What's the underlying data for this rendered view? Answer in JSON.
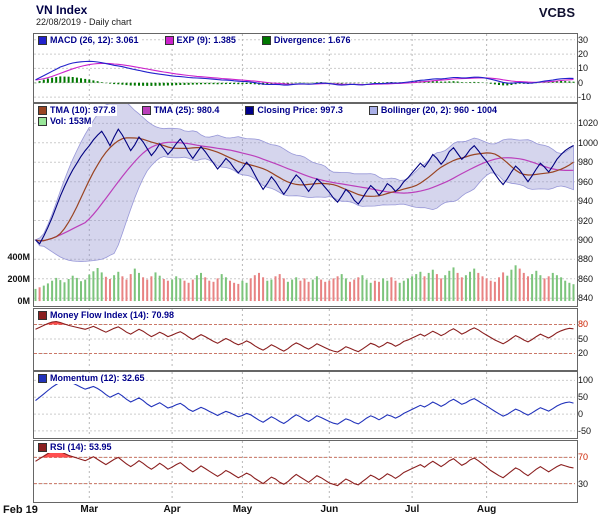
{
  "header": {
    "title": "VN Index",
    "date_line": "22/08/2019 - Daily chart",
    "brand": "VCBS"
  },
  "chart_data": {
    "type": "line",
    "description": "Multi-panel daily stock chart: MACD, price with Bollinger/TMA/volume, Money Flow Index, Momentum, RSI",
    "n_points": 131,
    "month_tick_indices": [
      13,
      33,
      50,
      71,
      91,
      109
    ],
    "x_labels": [
      "Feb 19",
      "Mar",
      "Apr",
      "May",
      "Jun",
      "Jul",
      "Aug"
    ],
    "threshold_label_color": "#cc2200",
    "panels": {
      "macd": {
        "type": "line+histogram",
        "legend": [
          {
            "label": "MACD (26, 12): 3.061",
            "color": "#2222cc"
          },
          {
            "label": "EXP (9): 1.385",
            "color": "#cc22cc"
          },
          {
            "label": "Divergence: 1.676",
            "color": "#007700"
          }
        ],
        "yticks": [
          30,
          20,
          10,
          0,
          -10
        ],
        "ylim": [
          -12,
          34
        ],
        "colors": {
          "macd": "#2222cc",
          "signal": "#cc22cc",
          "histogram": "#007700"
        },
        "series": {
          "macd": [
            2,
            3.5,
            5,
            6.5,
            8,
            9.5,
            11,
            12,
            13,
            13.8,
            14.3,
            14.6,
            14.8,
            15,
            14.8,
            14.5,
            14,
            13.4,
            12.8,
            12.2,
            11.8,
            11.2,
            10.5,
            9.8,
            9.2,
            8.6,
            8,
            7.4,
            6.9,
            6.4,
            6,
            5.6,
            5.2,
            4.8,
            4.5,
            4.3,
            4,
            3.7,
            3.5,
            3.3,
            3.2,
            3,
            2.8,
            2.5,
            2.2,
            2,
            1.9,
            1.7,
            1.4,
            1.1,
            0.9,
            0.8,
            0.5,
            0.1,
            -0.4,
            -0.9,
            -1.2,
            -1.2,
            -1.1,
            -1.3,
            -1.6,
            -1.6,
            -1.3,
            -0.9,
            -0.7,
            -0.8,
            -1,
            -0.8,
            -0.4,
            -0.2,
            -0.3,
            -0.6,
            -1,
            -1.4,
            -1.6,
            -1.4,
            -1.1,
            -1.1,
            -1.4,
            -1.5,
            -1.2,
            -0.8,
            -0.5,
            -0.6,
            -0.6,
            -0.3,
            -0.1,
            -0.2,
            -0.1,
            0.2,
            0.5,
            0.9,
            1.3,
            1.7,
            1.9,
            2.2,
            2.6,
            2.8,
            2.7,
            2.9,
            3.3,
            3.7,
            3.7,
            3.4,
            3.4,
            3.6,
            3.9,
            3.9,
            3.6,
            3.1,
            2.5,
            1.8,
            1,
            0.3,
            -0.2,
            -0.3,
            0,
            0.2,
            0,
            -0.3,
            -0.2,
            0.2,
            0.7,
            1.2,
            1.5,
            1.9,
            2.4,
            2.8,
            3,
            3.1,
            3.061
          ]
        }
      },
      "price": {
        "type": "line+band+volume",
        "legend_row1": [
          {
            "label": "TMA (10): 977.8",
            "color": "#994422"
          },
          {
            "label": "TMA (25): 980.4",
            "color": "#bb3fbb"
          },
          {
            "label": "Closing Price: 997.3",
            "color": "#00008b"
          },
          {
            "label": "Bollinger (20, 2): 960 - 1004",
            "color": "#aab0e8"
          }
        ],
        "legend_row2": [
          {
            "label": "Vol: 153M",
            "color": "#99e699"
          }
        ],
        "yticks": [
          1020,
          1000,
          980,
          960,
          940,
          920,
          900,
          880,
          860,
          840
        ],
        "ylim": [
          834,
          1040
        ],
        "vol_ticks": [
          {
            "label": "400M",
            "value": 400
          },
          {
            "label": "200M",
            "value": 200
          },
          {
            "label": "0M",
            "value": 0
          }
        ],
        "colors": {
          "close": "#000080",
          "tma10": "#994422",
          "tma25": "#bb3fbb",
          "bollinger_fill": "#9090cf",
          "bollinger_edge": "#9898d8",
          "vol_up": "#7cc47c",
          "vol_down": "#e88383"
        },
        "series": {
          "close": [
            900,
            896,
            904,
            913,
            923,
            934,
            945,
            955,
            964,
            972,
            979,
            986,
            992,
            997,
            1003,
            1008,
            1012,
            1005,
            997,
            1006,
            1014,
            1008,
            1000,
            992,
            998,
            1006,
            1001,
            994,
            987,
            992,
            999,
            994,
            988,
            993,
            999,
            1004,
            998,
            990,
            984,
            990,
            996,
            991,
            985,
            979,
            973,
            978,
            984,
            980,
            974,
            969,
            974,
            980,
            975,
            967,
            959,
            952,
            958,
            965,
            960,
            953,
            947,
            953,
            961,
            967,
            963,
            956,
            950,
            956,
            963,
            959,
            954,
            949,
            943,
            939,
            945,
            952,
            948,
            941,
            937,
            943,
            950,
            956,
            952,
            946,
            951,
            958,
            955,
            950,
            954,
            960,
            964,
            969,
            974,
            979,
            975,
            981,
            988,
            984,
            978,
            983,
            991,
            995,
            989,
            983,
            987,
            993,
            997,
            992,
            986,
            981,
            975,
            968,
            962,
            957,
            963,
            970,
            976,
            972,
            966,
            960,
            966,
            973,
            979,
            975,
            970,
            976,
            983,
            988,
            992,
            995,
            997.3
          ],
          "volume": [
            110,
            125,
            140,
            160,
            185,
            210,
            190,
            170,
            200,
            230,
            210,
            180,
            195,
            240,
            270,
            300,
            260,
            220,
            200,
            235,
            265,
            225,
            195,
            245,
            295,
            255,
            215,
            195,
            225,
            260,
            230,
            200,
            185,
            195,
            225,
            205,
            185,
            165,
            195,
            235,
            255,
            215,
            185,
            175,
            205,
            245,
            215,
            185,
            165,
            155,
            185,
            165,
            205,
            235,
            255,
            215,
            185,
            195,
            225,
            245,
            205,
            175,
            195,
            215,
            185,
            205,
            175,
            195,
            225,
            195,
            175,
            185,
            205,
            225,
            245,
            205,
            175,
            195,
            215,
            235,
            195,
            165,
            185,
            175,
            205,
            185,
            215,
            185,
            165,
            185,
            205,
            225,
            245,
            265,
            225,
            255,
            285,
            245,
            205,
            235,
            275,
            305,
            255,
            215,
            235,
            265,
            295,
            255,
            225,
            205,
            185,
            175,
            215,
            260,
            230,
            285,
            325,
            295,
            255,
            225,
            245,
            275,
            235,
            205,
            225,
            255,
            235,
            215,
            185,
            165,
            153
          ]
        }
      },
      "mfi": {
        "type": "line",
        "legend": [
          {
            "label": "Money Flow Index (14): 70.98",
            "color": "#8b2020"
          }
        ],
        "yticks": [
          80,
          50,
          20
        ],
        "red_ticks": [
          80
        ],
        "ylim": [
          -10,
          112
        ],
        "overbought": 80,
        "oversold": 20,
        "colors": {
          "line": "#8b2020",
          "fill": "#ff3030"
        },
        "series": {
          "values": [
            70,
            74,
            78,
            82,
            85,
            86,
            84,
            81,
            78,
            76,
            74,
            72,
            70,
            73,
            76,
            72,
            68,
            64,
            68,
            72,
            75,
            70,
            64,
            60,
            65,
            70,
            66,
            60,
            55,
            59,
            64,
            60,
            55,
            58,
            62,
            65,
            60,
            54,
            49,
            54,
            59,
            55,
            50,
            45,
            41,
            46,
            51,
            47,
            42,
            38,
            41,
            46,
            42,
            36,
            31,
            27,
            32,
            38,
            34,
            29,
            25,
            30,
            37,
            42,
            38,
            33,
            29,
            34,
            40,
            36,
            32,
            28,
            25,
            23,
            28,
            34,
            31,
            27,
            24,
            29,
            35,
            41,
            38,
            33,
            37,
            43,
            40,
            35,
            39,
            45,
            48,
            52,
            56,
            60,
            56,
            61,
            66,
            62,
            57,
            61,
            67,
            71,
            66,
            60,
            64,
            69,
            73,
            69,
            63,
            58,
            53,
            48,
            44,
            40,
            45,
            51,
            57,
            53,
            48,
            44,
            49,
            55,
            60,
            56,
            52,
            57,
            63,
            67,
            70,
            72,
            70.98
          ]
        }
      },
      "momentum": {
        "type": "line",
        "legend": [
          {
            "label": "Momentum (12): 32.65",
            "color": "#2233bb"
          }
        ],
        "yticks": [
          100,
          50,
          0,
          -50
        ],
        "ylim": [
          -65,
          125
        ],
        "colors": {
          "line": "#2233bb"
        },
        "series": {
          "values": [
            40,
            50,
            60,
            70,
            80,
            88,
            95,
            100,
            97,
            92,
            86,
            80,
            74,
            78,
            82,
            76,
            68,
            58,
            50,
            56,
            62,
            54,
            44,
            36,
            42,
            48,
            40,
            30,
            22,
            28,
            34,
            26,
            18,
            22,
            28,
            32,
            24,
            14,
            8,
            14,
            20,
            15,
            8,
            2,
            -4,
            2,
            8,
            4,
            -2,
            -8,
            -4,
            2,
            -2,
            -10,
            -18,
            -24,
            -16,
            -8,
            -14,
            -22,
            -28,
            -20,
            -10,
            -2,
            -8,
            -16,
            -22,
            -14,
            -5,
            -10,
            -16,
            -22,
            -27,
            -30,
            -22,
            -14,
            -18,
            -25,
            -29,
            -21,
            -12,
            -5,
            -10,
            -17,
            -10,
            -2,
            -6,
            -12,
            -6,
            2,
            8,
            14,
            20,
            26,
            21,
            28,
            36,
            30,
            23,
            29,
            38,
            44,
            37,
            29,
            34,
            41,
            46,
            39,
            31,
            24,
            16,
            8,
            1,
            -6,
            -1,
            7,
            15,
            10,
            3,
            -3,
            4,
            12,
            19,
            14,
            9,
            16,
            24,
            30,
            34,
            36,
            32.65
          ]
        }
      },
      "rsi": {
        "type": "line",
        "legend": [
          {
            "label": "RSI (14): 53.95",
            "color": "#8b2020"
          }
        ],
        "yticks": [
          70,
          30
        ],
        "red_ticks": [
          70
        ],
        "ylim": [
          5,
          95
        ],
        "overbought": 70,
        "oversold": 30,
        "colors": {
          "line": "#8b2020",
          "fill": "#ff3030"
        },
        "series": {
          "values": [
            64,
            68,
            72,
            76,
            79,
            81,
            79,
            76,
            73,
            71,
            69,
            67,
            65,
            68,
            71,
            67,
            63,
            59,
            63,
            67,
            70,
            65,
            60,
            56,
            60,
            65,
            61,
            56,
            52,
            56,
            61,
            57,
            52,
            55,
            59,
            62,
            57,
            52,
            48,
            52,
            57,
            53,
            49,
            45,
            41,
            45,
            50,
            47,
            43,
            39,
            42,
            46,
            43,
            38,
            34,
            30,
            35,
            40,
            37,
            32,
            29,
            33,
            39,
            44,
            40,
            36,
            32,
            37,
            42,
            39,
            35,
            31,
            29,
            27,
            32,
            37,
            34,
            30,
            28,
            33,
            38,
            43,
            40,
            36,
            40,
            45,
            42,
            38,
            42,
            47,
            50,
            53,
            56,
            59,
            55,
            60,
            64,
            60,
            56,
            60,
            65,
            68,
            63,
            58,
            61,
            66,
            69,
            65,
            60,
            55,
            50,
            46,
            42,
            39,
            44,
            49,
            54,
            51,
            46,
            42,
            47,
            52,
            56,
            52,
            48,
            52,
            56,
            59,
            57,
            55,
            53.95
          ]
        }
      }
    }
  }
}
